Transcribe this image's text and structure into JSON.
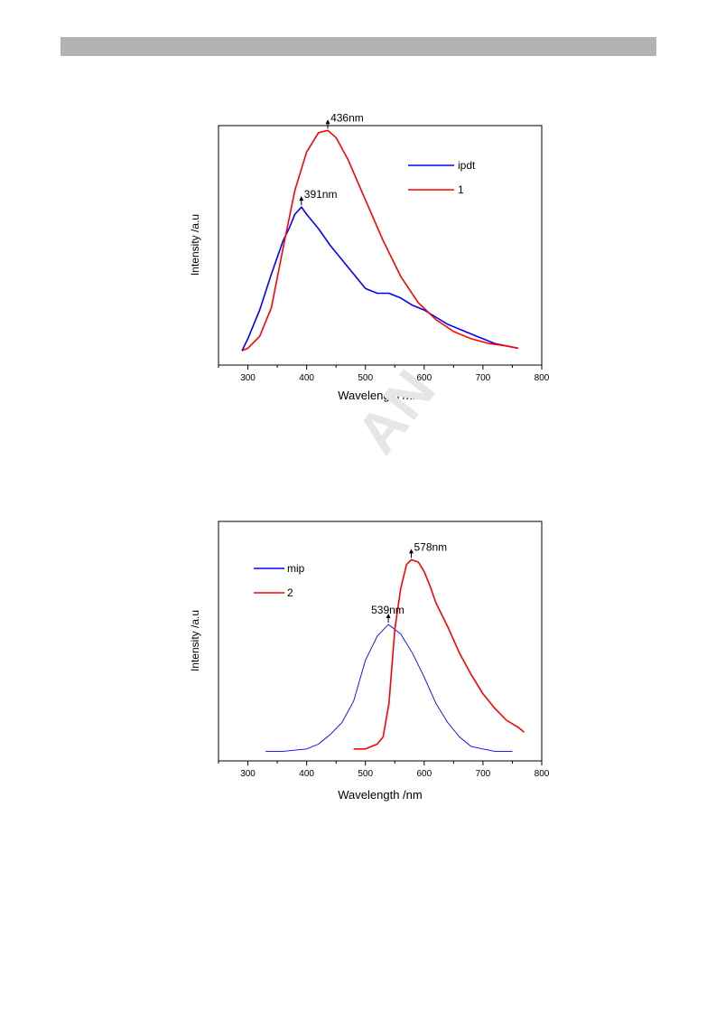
{
  "chart_data": [
    {
      "type": "line",
      "xlabel": "Wavelength /nm",
      "ylabel": "Intensity /a.u",
      "xlim": [
        250,
        800
      ],
      "ylim": [
        0,
        1.0
      ],
      "xticks": [
        300,
        400,
        500,
        600,
        700,
        800
      ],
      "legend_position": "top-right",
      "series": [
        {
          "name": "ipdt",
          "color": "#0000ff",
          "x": [
            290,
            300,
            320,
            340,
            360,
            370,
            380,
            391,
            400,
            420,
            440,
            460,
            480,
            500,
            520,
            540,
            560,
            580,
            600,
            620,
            640,
            660,
            680,
            700,
            720,
            740,
            760
          ],
          "y": [
            0.06,
            0.11,
            0.23,
            0.38,
            0.52,
            0.57,
            0.63,
            0.66,
            0.63,
            0.57,
            0.5,
            0.44,
            0.38,
            0.32,
            0.3,
            0.3,
            0.28,
            0.25,
            0.23,
            0.2,
            0.17,
            0.15,
            0.13,
            0.11,
            0.09,
            0.08,
            0.07
          ]
        },
        {
          "name": "1",
          "color": "#ff0000",
          "x": [
            290,
            300,
            320,
            340,
            360,
            380,
            400,
            420,
            436,
            450,
            470,
            500,
            530,
            560,
            590,
            620,
            650,
            680,
            710,
            740,
            760
          ],
          "y": [
            0.06,
            0.07,
            0.12,
            0.24,
            0.49,
            0.73,
            0.89,
            0.97,
            0.98,
            0.95,
            0.86,
            0.69,
            0.52,
            0.37,
            0.26,
            0.19,
            0.14,
            0.11,
            0.09,
            0.08,
            0.07
          ]
        }
      ],
      "annotations": [
        {
          "text": "436nm",
          "x": 436,
          "y": 0.98
        },
        {
          "text": "391nm",
          "x": 391,
          "y": 0.66
        }
      ]
    },
    {
      "type": "line",
      "xlabel": "Wavelength /nm",
      "ylabel": "Intensity /a.u",
      "xlim": [
        250,
        800
      ],
      "ylim": [
        0,
        1.0
      ],
      "xticks": [
        300,
        400,
        500,
        600,
        700,
        800
      ],
      "legend_position": "top-left",
      "series": [
        {
          "name": "mip",
          "color": "#0000ff",
          "x": [
            330,
            360,
            400,
            420,
            440,
            460,
            480,
            500,
            520,
            539,
            560,
            580,
            600,
            620,
            640,
            660,
            680,
            700,
            720,
            750
          ],
          "y": [
            0.04,
            0.04,
            0.05,
            0.07,
            0.11,
            0.16,
            0.25,
            0.42,
            0.52,
            0.57,
            0.53,
            0.45,
            0.35,
            0.24,
            0.16,
            0.1,
            0.06,
            0.05,
            0.04,
            0.04
          ]
        },
        {
          "name": "2",
          "color": "#ff0000",
          "x": [
            480,
            500,
            510,
            520,
            530,
            540,
            550,
            560,
            570,
            578,
            590,
            600,
            610,
            620,
            640,
            660,
            680,
            700,
            720,
            740,
            760,
            770
          ],
          "y": [
            0.05,
            0.05,
            0.06,
            0.07,
            0.1,
            0.24,
            0.55,
            0.72,
            0.82,
            0.84,
            0.83,
            0.79,
            0.73,
            0.66,
            0.56,
            0.45,
            0.36,
            0.28,
            0.22,
            0.17,
            0.14,
            0.12
          ]
        }
      ],
      "annotations": [
        {
          "text": "578nm",
          "x": 578,
          "y": 0.84
        },
        {
          "text": "539nm",
          "x": 539,
          "y": 0.57
        }
      ]
    }
  ]
}
